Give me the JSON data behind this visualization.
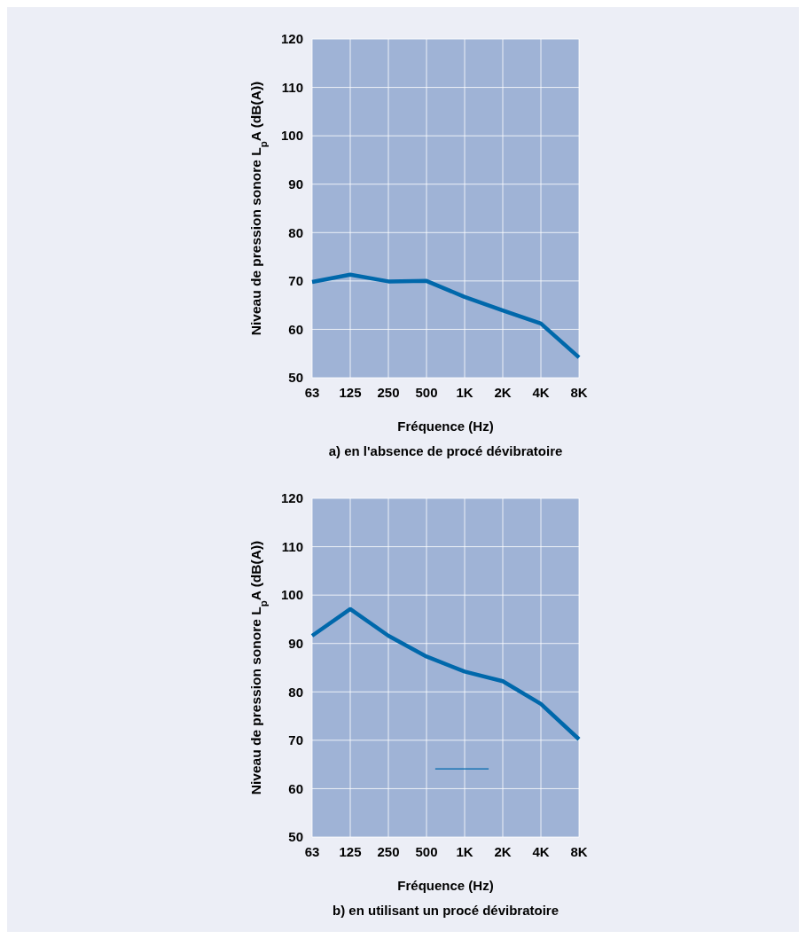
{
  "chart_data": [
    {
      "type": "line",
      "title": "a) en l'absence de procé dévibratoire",
      "xlabel": "Fréquence (Hz)",
      "ylabel": "Niveau de pression sonore L$_{p}$A (dB(A))",
      "categories": [
        "63",
        "125",
        "250",
        "500",
        "1K",
        "2K",
        "4K",
        "8K"
      ],
      "values": [
        69.8,
        71.3,
        69.9,
        70,
        66.7,
        63.9,
        61.2,
        54.2
      ],
      "color": "#0068ab",
      "ylim": [
        50,
        120
      ],
      "yticks": [
        50,
        60,
        70,
        80,
        90,
        100,
        110,
        120
      ],
      "grid": true
    },
    {
      "type": "line",
      "title": "b) en utilisant un procé dévibratoire",
      "xlabel": "Fréquence (Hz)",
      "ylabel": "Niveau de pression sonore L$_{p}$A (dB(A))",
      "categories": [
        "63",
        "125",
        "250",
        "500",
        "1K",
        "2K",
        "4K",
        "8K"
      ],
      "values": [
        91.6,
        97.1,
        91.6,
        87.3,
        84.2,
        82.2,
        77.5,
        70.2
      ],
      "color": "#0068ab",
      "ylim": [
        50,
        120
      ],
      "yticks": [
        50,
        60,
        70,
        80,
        90,
        100,
        110,
        120
      ],
      "grid": true
    }
  ]
}
